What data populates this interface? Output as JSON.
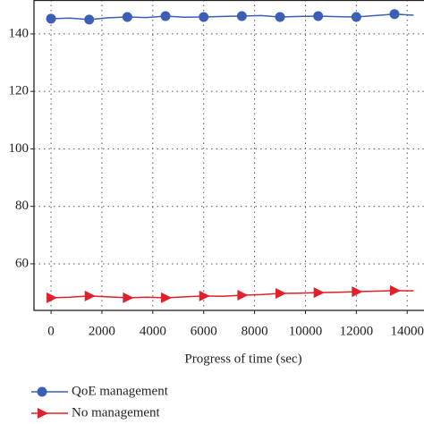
{
  "chart_data": {
    "type": "line",
    "xlabel": "Progress of time (sec)",
    "x": [
      0,
      750,
      1500,
      2250,
      3000,
      3750,
      4500,
      5250,
      6000,
      6750,
      7500,
      8250,
      9000,
      9750,
      10500,
      11250,
      12000,
      12750,
      13500,
      14250
    ],
    "series": [
      {
        "name": "QoE management",
        "color": "#3b5fb4",
        "marker": "circle",
        "values": [
          145.3,
          145.5,
          145.0,
          145.6,
          145.9,
          145.7,
          146.2,
          145.8,
          145.9,
          146.1,
          146.2,
          146.4,
          145.9,
          146.1,
          146.2,
          146.0,
          145.9,
          146.4,
          146.9,
          146.5
        ]
      },
      {
        "name": "No management",
        "color": "#e0202a",
        "marker": "triangle-right",
        "values": [
          48.2,
          48.4,
          48.8,
          48.5,
          48.2,
          48.4,
          48.2,
          48.5,
          48.8,
          48.7,
          49.1,
          49.3,
          49.7,
          49.8,
          50.0,
          50.1,
          50.3,
          50.5,
          50.7,
          50.6
        ]
      }
    ],
    "xlim": [
      -670,
      14660
    ],
    "xticks": [
      0,
      2000,
      4000,
      6000,
      8000,
      10000,
      12000,
      14000
    ],
    "ylim": [
      43.8,
      151.8
    ],
    "yticks": [
      60,
      80,
      100,
      120,
      140
    ],
    "grid": true
  }
}
